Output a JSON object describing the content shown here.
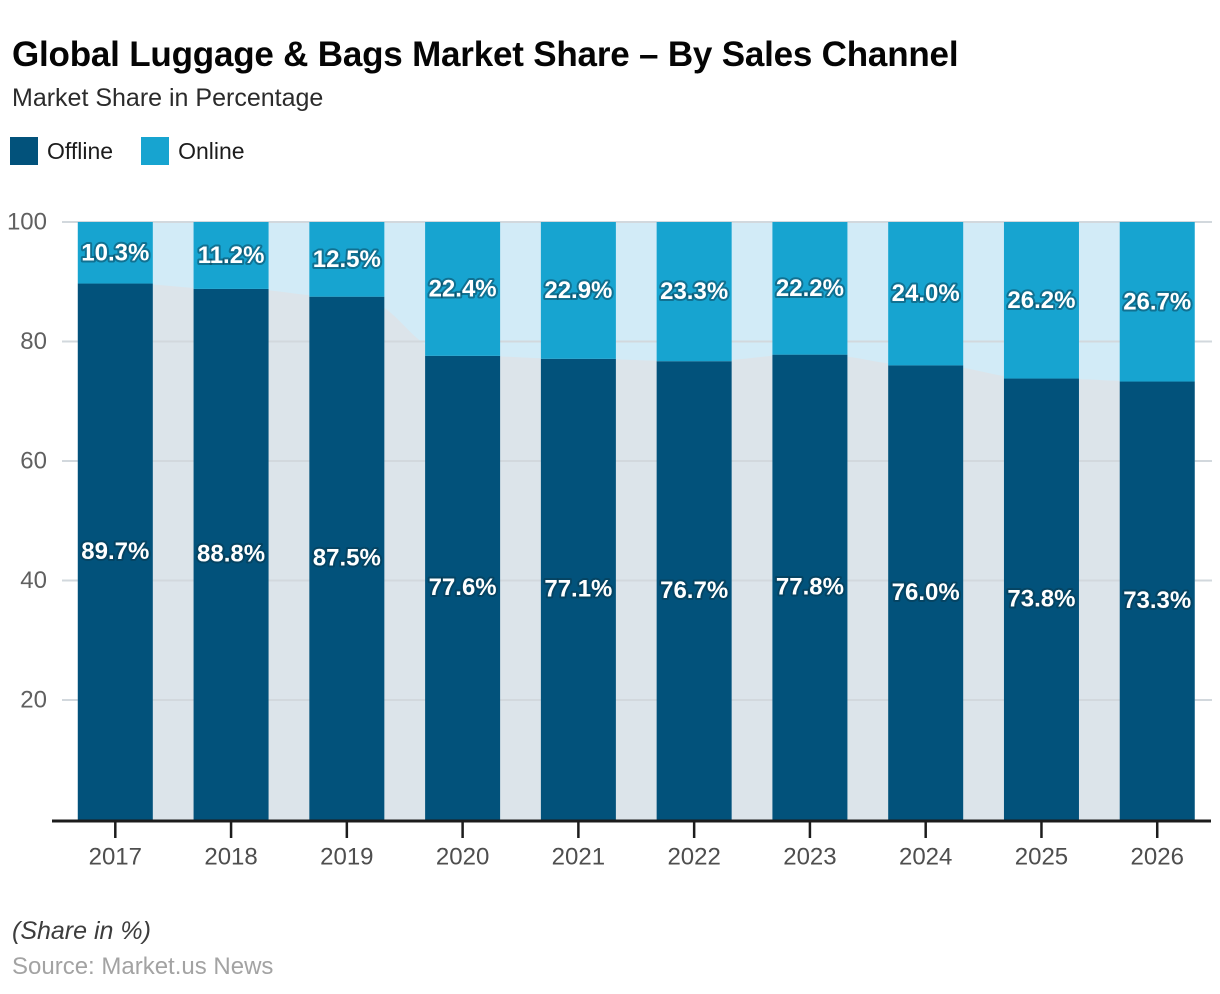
{
  "title": "Global Luggage & Bags Market Share – By Sales Channel",
  "subtitle": "Market Share in Percentage",
  "legend": {
    "items": [
      {
        "label": "Offline",
        "color": "#02527b"
      },
      {
        "label": "Online",
        "color": "#17a4d0"
      }
    ]
  },
  "footer": {
    "note": "(Share in %)",
    "source": "Source: Market.us News"
  },
  "chart_data": {
    "type": "bar",
    "stacked": true,
    "title": "Global Luggage & Bags Market Share – By Sales Channel",
    "categories": [
      "2017",
      "2018",
      "2019",
      "2020",
      "2021",
      "2022",
      "2023",
      "2024",
      "2025",
      "2026"
    ],
    "series": [
      {
        "name": "Offline",
        "color": "#02527b",
        "tint": "#dce4ea",
        "values": [
          89.7,
          88.8,
          87.5,
          77.6,
          77.1,
          76.7,
          77.8,
          76.0,
          73.8,
          73.3
        ]
      },
      {
        "name": "Online",
        "color": "#17a4d0",
        "tint": "#d2ebf7",
        "values": [
          10.3,
          11.2,
          12.5,
          22.4,
          22.9,
          23.3,
          22.2,
          24.0,
          26.2,
          26.7
        ]
      }
    ],
    "xlabel": "",
    "ylabel": "",
    "ylim": [
      0,
      100
    ],
    "yticks": [
      20,
      40,
      60,
      80,
      100
    ],
    "grid": true,
    "legend_position": "top-left",
    "value_labels": true,
    "value_label_suffix": "%",
    "background": "stacked-area-tint-behind-bars"
  }
}
